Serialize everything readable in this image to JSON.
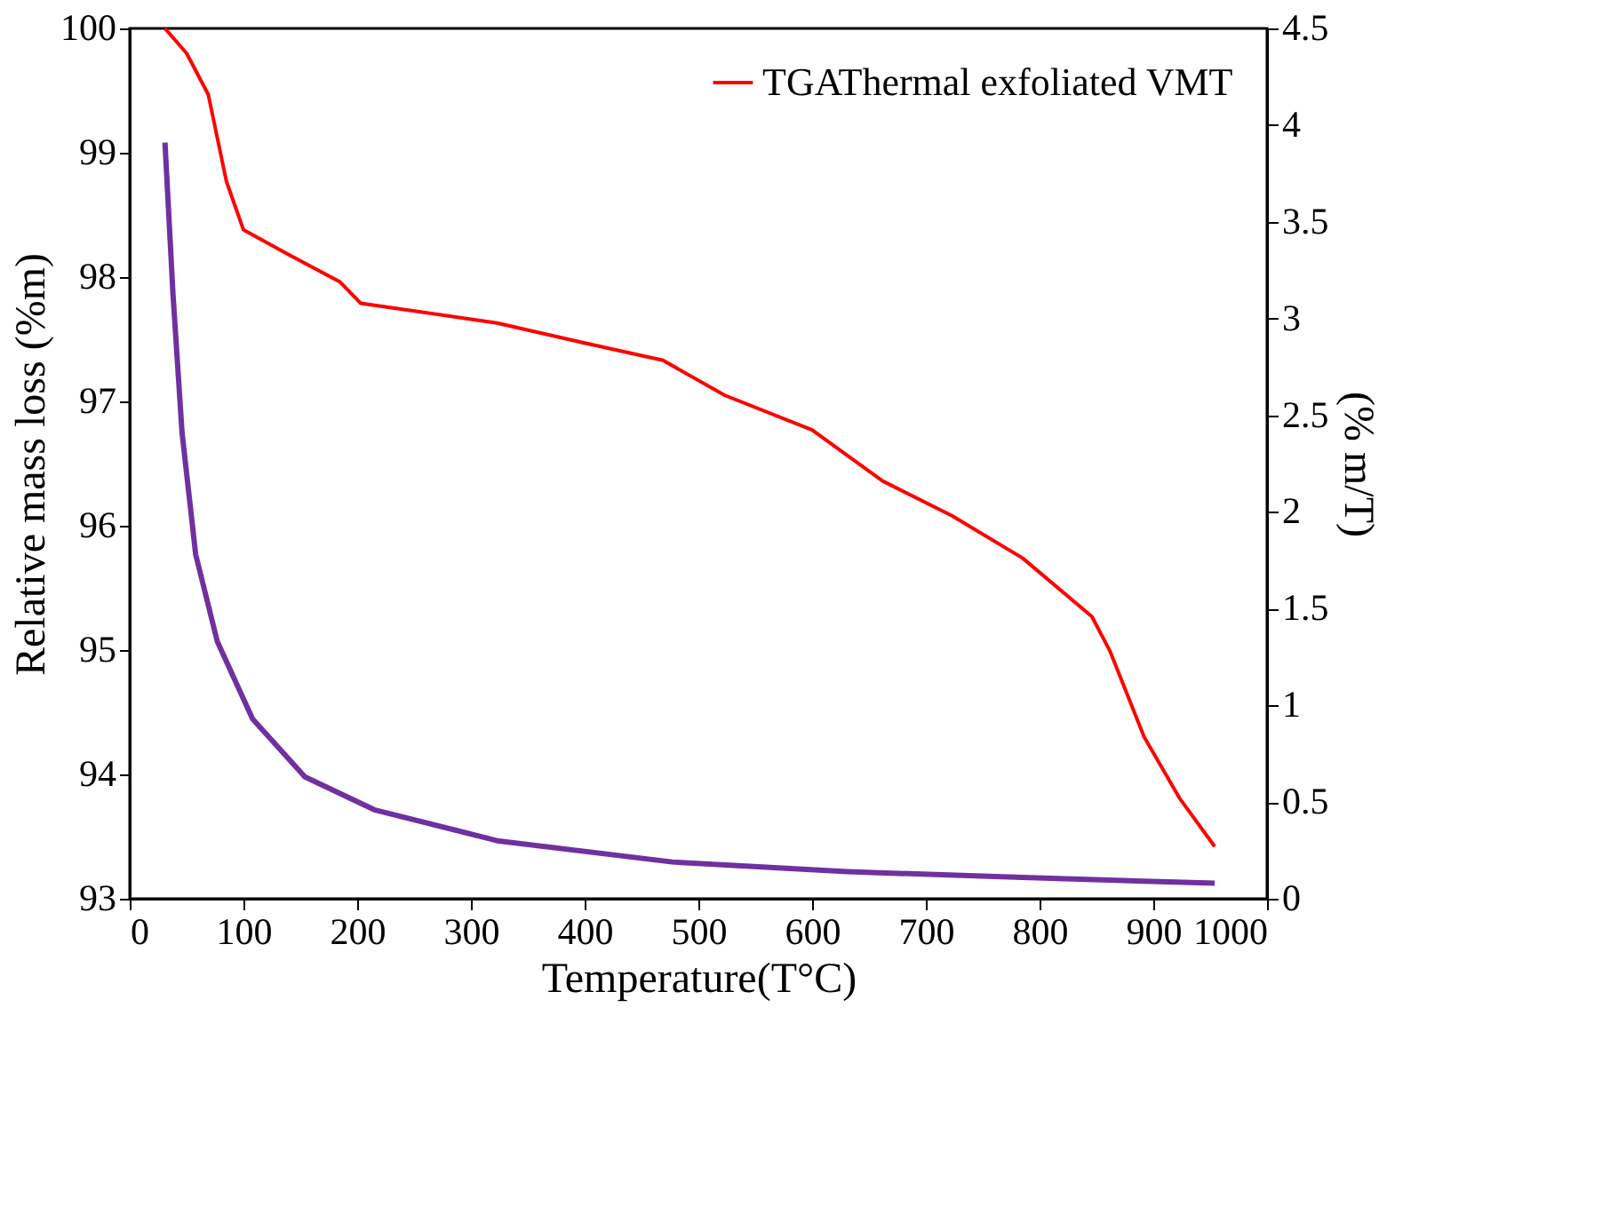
{
  "chart_data": {
    "type": "line",
    "xlabel": "Temperature(T°C)",
    "ylabel": "Relative mass loss (%m)",
    "y2label": "(% m/T)",
    "xlim": [
      0,
      1000
    ],
    "xticks": [
      0,
      100,
      200,
      300,
      400,
      500,
      600,
      700,
      800,
      900,
      1000
    ],
    "ylim": [
      93,
      100
    ],
    "yticks": [
      93,
      94,
      95,
      96,
      97,
      98,
      99,
      100
    ],
    "y2lim": [
      0,
      4.5
    ],
    "y2ticks": [
      0,
      0.5,
      1,
      1.5,
      2,
      2.5,
      3,
      3.5,
      4,
      4.5
    ],
    "grid": false,
    "legend": "top right",
    "marker": "none",
    "line_style": "solid",
    "series": [
      {
        "name": "TGAThermal exfoliated VMT",
        "color": "#ff0000",
        "x": [
          31,
          50,
          69,
          85,
          100,
          138,
          185,
          203,
          323,
          400,
          469,
          523,
          600,
          662,
          723,
          785,
          846,
          862,
          892,
          923,
          954
        ],
        "values": [
          100,
          99.8,
          99.47,
          98.77,
          98.38,
          98.19,
          97.96,
          97.79,
          97.63,
          97.47,
          97.33,
          97.05,
          96.77,
          96.36,
          96.08,
          95.74,
          95.27,
          94.99,
          94.3,
          93.81,
          93.42
        ]
      },
      {
        "color": "#7030a0",
        "axis": "y2",
        "x": [
          31,
          38,
          46,
          58,
          77,
          108,
          154,
          215,
          323,
          477,
          631,
          785,
          954
        ],
        "values": [
          3.91,
          3.13,
          2.41,
          1.78,
          1.33,
          0.93,
          0.63,
          0.46,
          0.3,
          0.19,
          0.14,
          0.11,
          0.08
        ]
      }
    ]
  }
}
